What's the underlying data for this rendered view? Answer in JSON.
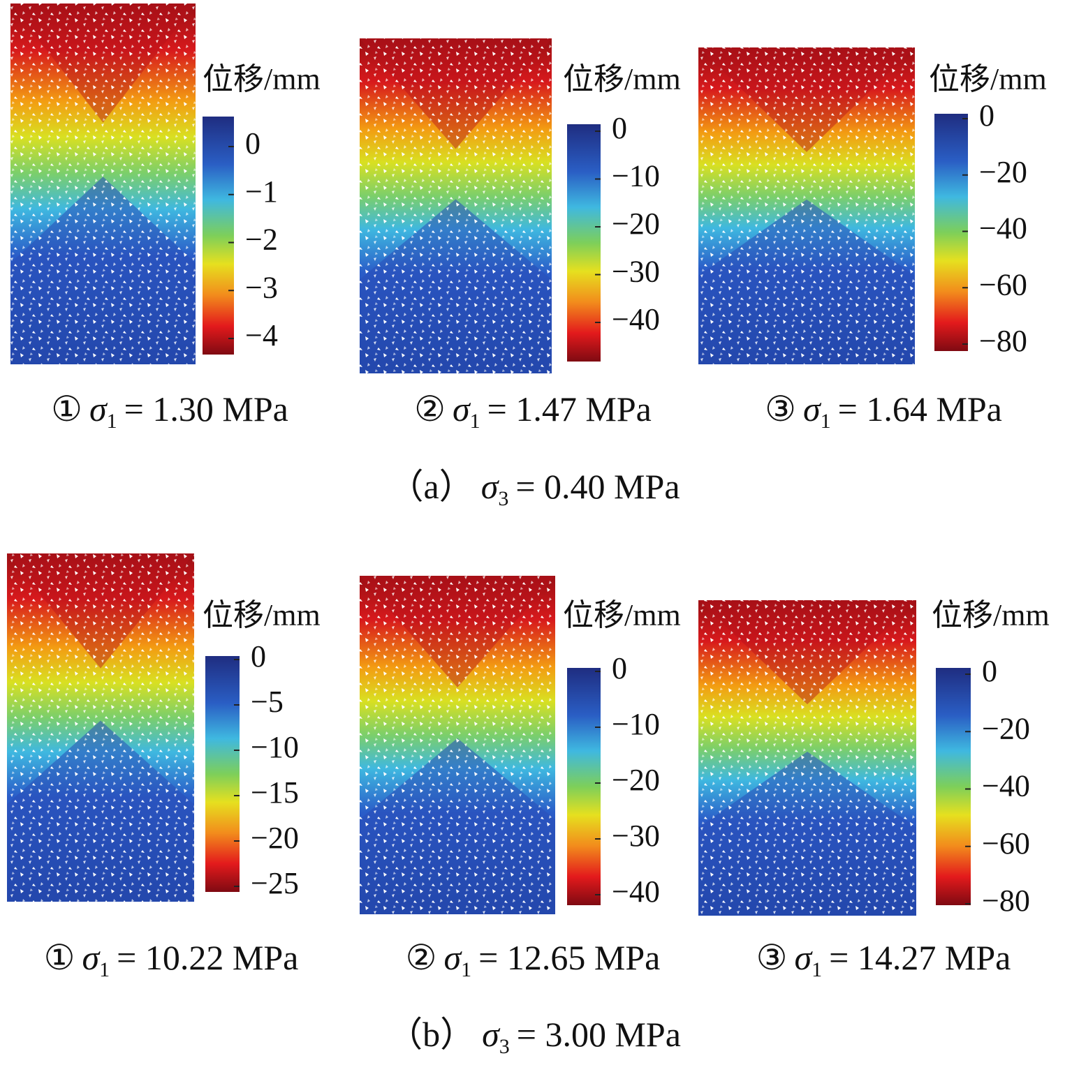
{
  "groups": [
    {
      "caption": {
        "prefix": "（a）",
        "symbol": "σ",
        "sub": "3",
        "text": "= 0.40 MPa"
      },
      "panels": [
        {
          "colorbar_title": "位移/mm",
          "ticks": [
            "0",
            "−1",
            "−2",
            "−3",
            "−4"
          ],
          "caption": {
            "marker": "①",
            "symbol": "σ",
            "sub": "1",
            "text": "= 1.30 MPa"
          }
        },
        {
          "colorbar_title": "位移/mm",
          "ticks": [
            "0",
            "−10",
            "−20",
            "−30",
            "−40"
          ],
          "caption": {
            "marker": "②",
            "symbol": "σ",
            "sub": "1",
            "text": "= 1.47 MPa"
          }
        },
        {
          "colorbar_title": "位移/mm",
          "ticks": [
            "0",
            "−20",
            "−40",
            "−60",
            "−80"
          ],
          "caption": {
            "marker": "③",
            "symbol": "σ",
            "sub": "1",
            "text": "= 1.64 MPa"
          }
        }
      ]
    },
    {
      "caption": {
        "prefix": "（b）",
        "symbol": "σ",
        "sub": "3",
        "text": "= 3.00 MPa"
      },
      "panels": [
        {
          "colorbar_title": "位移/mm",
          "ticks": [
            "0",
            "−5",
            "−10",
            "−15",
            "−20",
            "−25"
          ],
          "caption": {
            "marker": "①",
            "symbol": "σ",
            "sub": "1",
            "text": "= 10.22 MPa"
          }
        },
        {
          "colorbar_title": "位移/mm",
          "ticks": [
            "0",
            "−10",
            "−20",
            "−30",
            "−40"
          ],
          "caption": {
            "marker": "②",
            "symbol": "σ",
            "sub": "1",
            "text": "= 12.65 MPa"
          }
        },
        {
          "colorbar_title": "位移/mm",
          "ticks": [
            "0",
            "−20",
            "−40",
            "−60",
            "−80"
          ],
          "caption": {
            "marker": "③",
            "symbol": "σ",
            "sub": "1",
            "text": "= 14.27 MPa"
          }
        }
      ]
    }
  ]
}
